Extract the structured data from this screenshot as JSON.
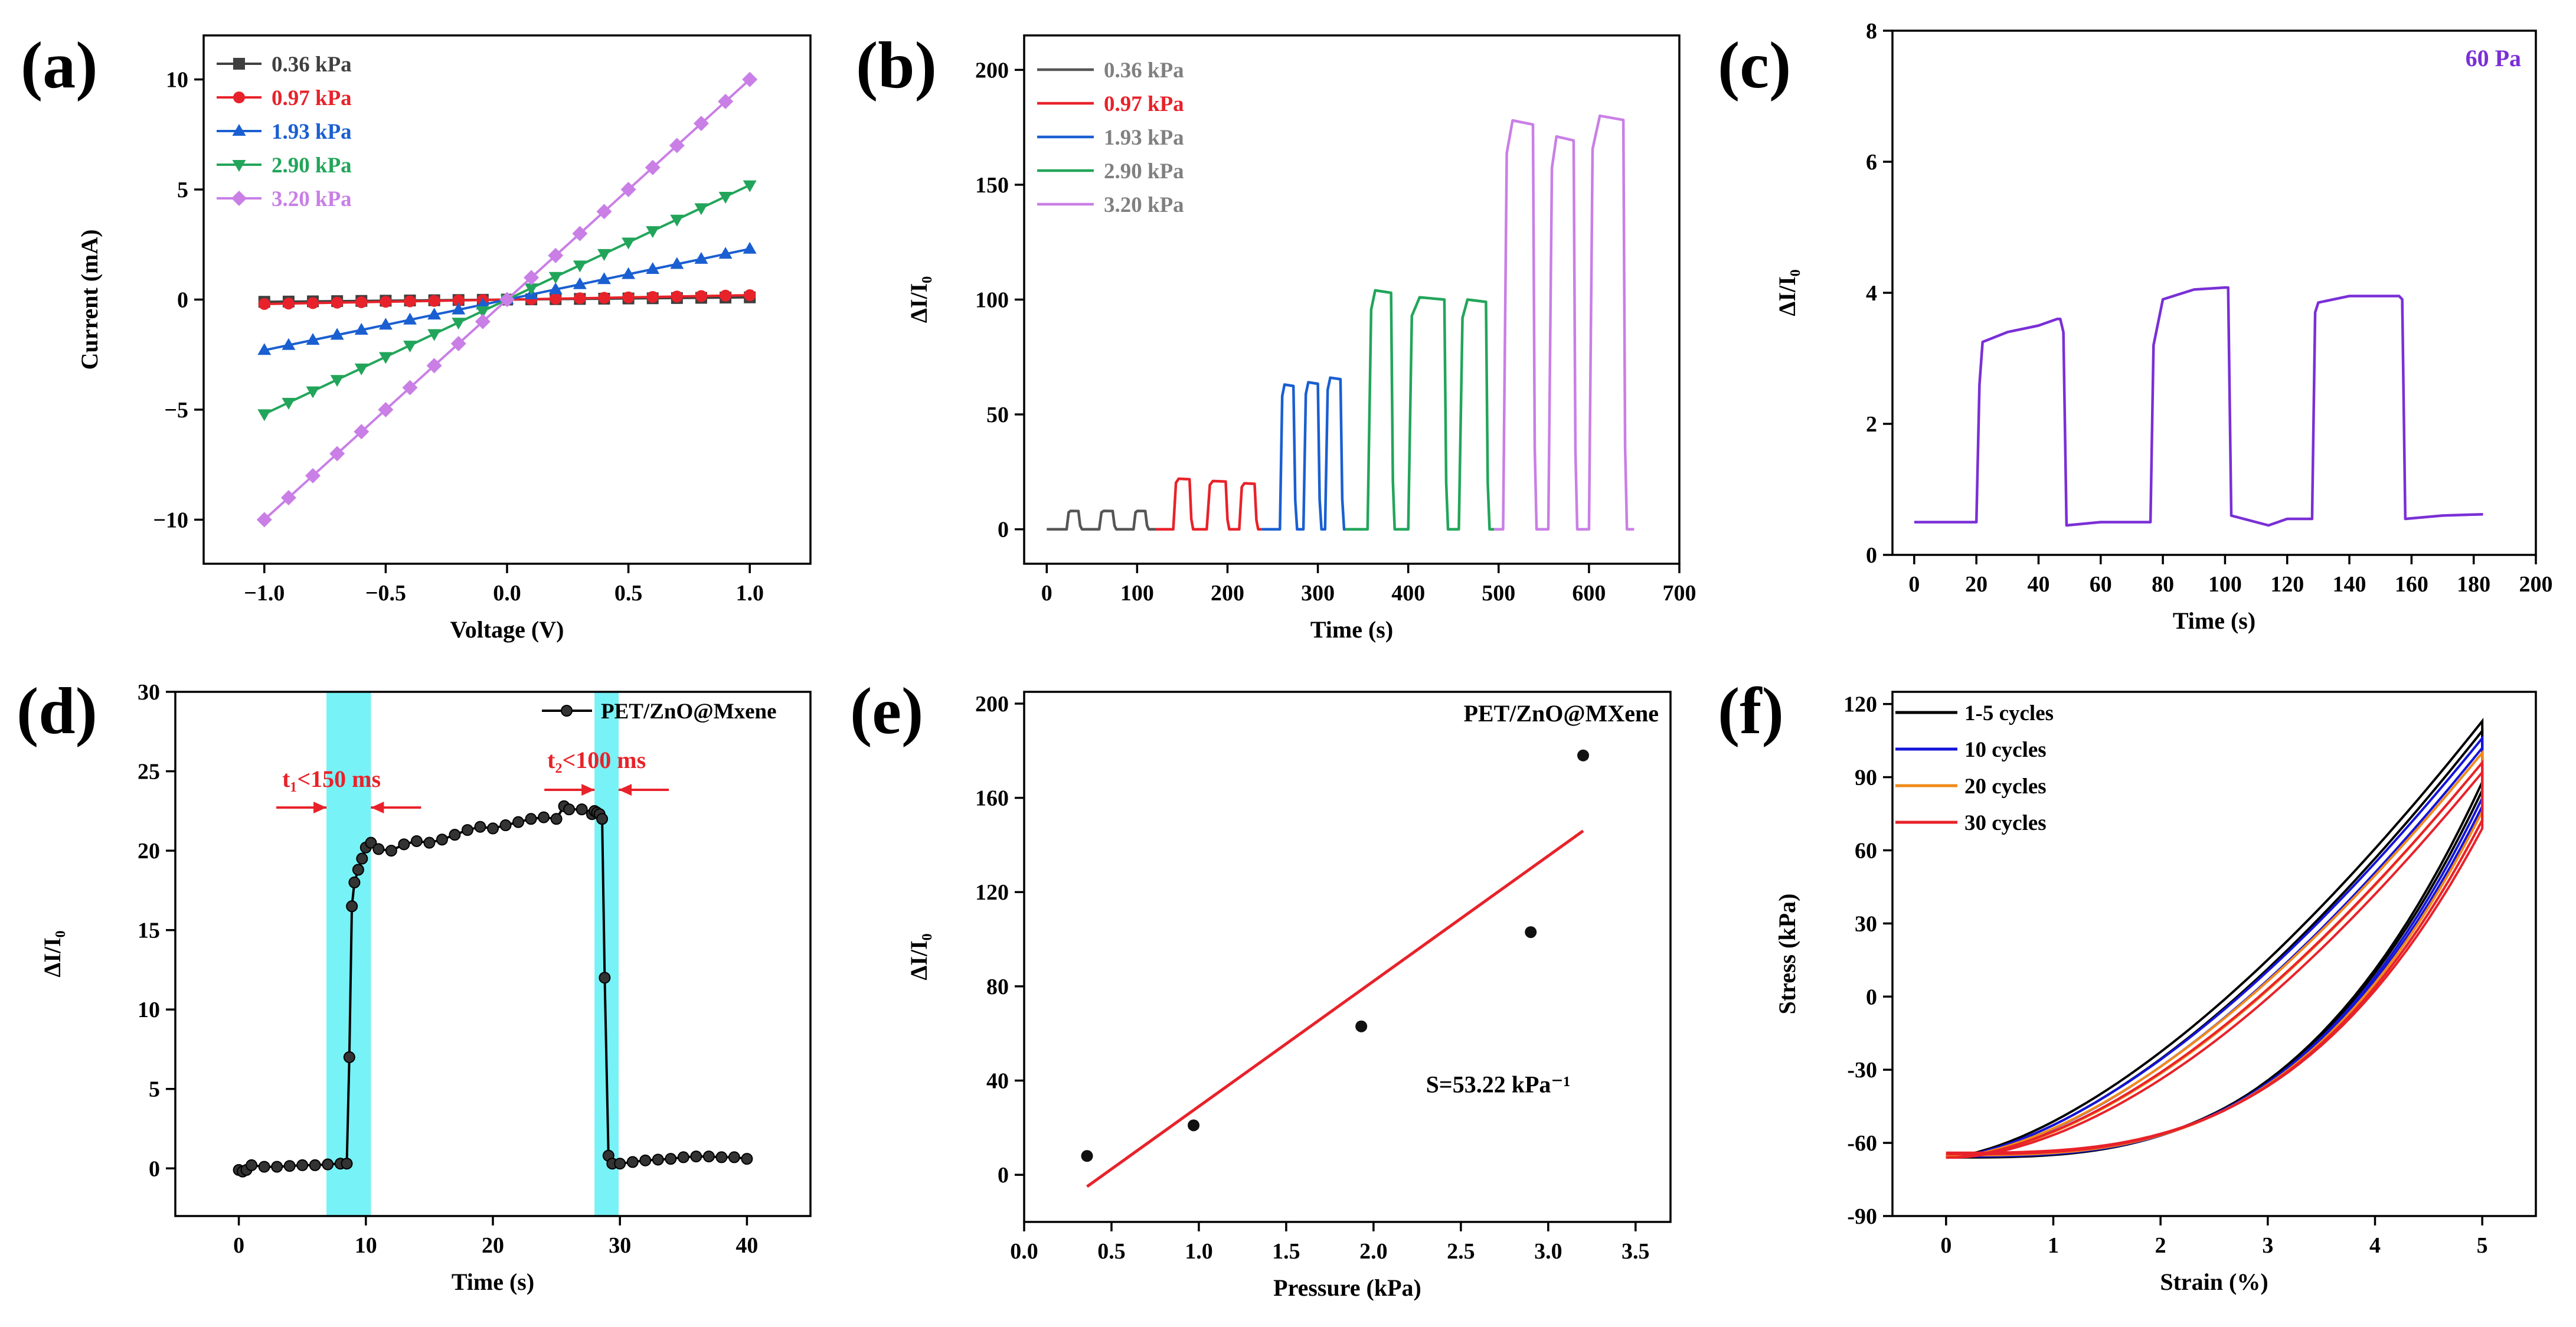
{
  "chart_data": [
    {
      "panel": "(a)",
      "type": "line",
      "xlabel": "Voltage (V)",
      "ylabel": "Current (mA)",
      "xlim": [
        -1.25,
        1.25
      ],
      "ylim": [
        -12,
        12
      ],
      "xticks": [
        -1.0,
        -0.5,
        0.0,
        0.5,
        1.0
      ],
      "xtick_labels": [
        "−1.0",
        "−0.5",
        "0.0",
        "0.5",
        "1.0"
      ],
      "yticks": [
        -10,
        -5,
        0,
        5,
        10
      ],
      "ytick_labels": [
        "−10",
        "−5",
        "0",
        "5",
        "10"
      ],
      "legend_position": "top-left",
      "series": [
        {
          "name": "0.36 kPa",
          "slope": 0.1,
          "color": "#404040",
          "marker": "square"
        },
        {
          "name": "0.97 kPa",
          "slope": 0.2,
          "color": "#e8222a",
          "marker": "circle"
        },
        {
          "name": "1.93 kPa",
          "slope": 2.3,
          "color": "#1a5fd1",
          "marker": "triangle-up"
        },
        {
          "name": "2.90 kPa",
          "slope": 5.2,
          "color": "#22a55a",
          "marker": "triangle-down"
        },
        {
          "name": "3.20 kPa",
          "slope": 10.0,
          "color": "#c97fe6",
          "marker": "diamond"
        }
      ]
    },
    {
      "panel": "(b)",
      "type": "line",
      "xlabel": "Time (s)",
      "ylabel": "ΔI/I₀",
      "xlim": [
        -25,
        700
      ],
      "ylim": [
        -15,
        215
      ],
      "xticks": [
        0,
        100,
        200,
        300,
        400,
        500,
        600,
        700
      ],
      "xtick_labels": [
        "0",
        "100",
        "200",
        "300",
        "400",
        "500",
        "600",
        "700"
      ],
      "yticks": [
        0,
        50,
        100,
        150,
        200
      ],
      "ytick_labels": [
        "0",
        "50",
        "100",
        "150",
        "200"
      ],
      "legend_position": "top-left",
      "series": [
        {
          "name": "0.36 kPa",
          "color": "#555555",
          "base": 0,
          "peaks": [
            8,
            8,
            8
          ],
          "pulses": [
            [
              22,
              37
            ],
            [
              58,
              75
            ],
            [
              96,
              111
            ]
          ],
          "range": [
            0,
            120
          ]
        },
        {
          "name": "0.97 kPa",
          "color": "#e8222a",
          "base": 0,
          "peaks": [
            22,
            21,
            20
          ],
          "pulses": [
            [
              140,
              160
            ],
            [
              177,
              200
            ],
            [
              213,
              232
            ]
          ],
          "range": [
            120,
            238
          ]
        },
        {
          "name": "1.93 kPa",
          "color": "#1a5fd1",
          "base": 0,
          "peaks": [
            63,
            64,
            66
          ],
          "pulses": [
            [
              258,
              275
            ],
            [
              284,
              302
            ],
            [
              308,
              327
            ]
          ],
          "range": [
            238,
            330
          ]
        },
        {
          "name": "2.90 kPa",
          "color": "#22a55a",
          "base": 0,
          "peaks": [
            104,
            101,
            100
          ],
          "pulses": [
            [
              355,
              383
            ],
            [
              400,
              442
            ],
            [
              456,
              488
            ]
          ],
          "range": [
            330,
            495
          ]
        },
        {
          "name": "3.20 kPa",
          "color": "#c97fe6",
          "base": 0,
          "peaks": [
            178,
            171,
            180
          ],
          "pulses": [
            [
              505,
              540
            ],
            [
              555,
              585
            ],
            [
              600,
              640
            ]
          ],
          "range": [
            495,
            650
          ]
        }
      ]
    },
    {
      "panel": "(c)",
      "type": "line",
      "xlabel": "Time (s)",
      "ylabel": "ΔI/I₀",
      "xlim": [
        -7,
        200
      ],
      "ylim": [
        0,
        8
      ],
      "xticks": [
        0,
        20,
        40,
        60,
        80,
        100,
        120,
        140,
        160,
        180,
        200
      ],
      "xtick_labels": [
        "0",
        "20",
        "40",
        "60",
        "80",
        "100",
        "120",
        "140",
        "160",
        "180",
        "200"
      ],
      "yticks": [
        0,
        2,
        4,
        6,
        8
      ],
      "ytick_labels": [
        "0",
        "2",
        "4",
        "6",
        "8"
      ],
      "annotation": "60 Pa",
      "color": "#7a2fd6",
      "x": [
        0,
        20,
        21,
        22,
        30,
        40,
        46,
        47,
        48,
        49,
        60,
        76,
        77,
        80,
        90,
        100,
        101,
        102,
        110,
        114,
        120,
        128,
        129,
        130,
        140,
        150,
        156,
        157,
        158,
        170,
        183
      ],
      "y": [
        0.5,
        0.5,
        2.6,
        3.25,
        3.4,
        3.5,
        3.6,
        3.6,
        3.4,
        0.45,
        0.5,
        0.5,
        3.2,
        3.9,
        4.05,
        4.08,
        4.08,
        0.6,
        0.5,
        0.45,
        0.55,
        0.55,
        3.7,
        3.85,
        3.95,
        3.95,
        3.95,
        3.9,
        0.55,
        0.6,
        0.62
      ]
    },
    {
      "panel": "(d)",
      "type": "line",
      "xlabel": "Time (s)",
      "ylabel": "ΔI/I₀",
      "xlim": [
        -5,
        45
      ],
      "ylim": [
        -3,
        30
      ],
      "xticks": [
        0,
        10,
        20,
        30,
        40
      ],
      "xtick_labels": [
        "0",
        "10",
        "20",
        "30",
        "40"
      ],
      "yticks": [
        0,
        5,
        10,
        15,
        20,
        25,
        30
      ],
      "ytick_labels": [
        "0",
        "5",
        "10",
        "15",
        "20",
        "25",
        "30"
      ],
      "legend": "PET/ZnO@Mxene",
      "legend_position": "top-right",
      "shaded_regions": [
        [
          6.9,
          10.4
        ],
        [
          28.0,
          29.9
        ]
      ],
      "annotations": [
        "t₁<150 ms",
        "t₂<100 ms"
      ],
      "x": [
        0,
        0.3,
        0.6,
        1,
        2,
        3,
        4,
        5,
        6,
        7,
        8,
        8.5,
        8.7,
        8.9,
        9.1,
        9.4,
        9.7,
        10,
        10.4,
        11,
        12,
        13,
        14,
        15,
        16,
        17,
        18,
        19,
        20,
        21,
        22,
        23,
        24,
        25,
        25.6,
        26,
        27,
        27.8,
        28,
        28.2,
        28.4,
        28.6,
        28.8,
        29.1,
        29.4,
        30,
        31,
        32,
        33,
        34,
        35,
        36,
        37,
        38,
        39,
        40
      ],
      "y": [
        -0.1,
        -0.2,
        -0.1,
        0.2,
        0.1,
        0.1,
        0.15,
        0.2,
        0.2,
        0.25,
        0.3,
        0.3,
        7,
        16.5,
        18,
        18.8,
        19.5,
        20.2,
        20.5,
        20.1,
        20,
        20.4,
        20.6,
        20.5,
        20.7,
        21,
        21.3,
        21.5,
        21.4,
        21.6,
        21.8,
        22,
        22.1,
        22,
        22.8,
        22.6,
        22.6,
        22.3,
        22.5,
        22.4,
        22.3,
        22,
        12,
        0.8,
        0.3,
        0.3,
        0.4,
        0.5,
        0.55,
        0.6,
        0.7,
        0.75,
        0.75,
        0.7,
        0.7,
        0.6
      ]
    },
    {
      "panel": "(e)",
      "type": "scatter",
      "xlabel": "Pressure (kPa)",
      "ylabel": "ΔI/I₀",
      "xlim": [
        0,
        3.7
      ],
      "ylim": [
        -20,
        205
      ],
      "xticks": [
        0,
        0.5,
        1.0,
        1.5,
        2.0,
        2.5,
        3.0,
        3.5
      ],
      "xtick_labels": [
        "0.0",
        "0.5",
        "1.0",
        "1.5",
        "2.0",
        "2.5",
        "3.0",
        "3.5"
      ],
      "yticks": [
        0,
        40,
        80,
        120,
        160,
        200
      ],
      "ytick_labels": [
        "0",
        "40",
        "80",
        "120",
        "160",
        "200"
      ],
      "x": [
        0.36,
        0.97,
        1.93,
        2.9,
        3.2
      ],
      "y": [
        8,
        21,
        63,
        103,
        178
      ],
      "fit_line": {
        "x": [
          0.36,
          3.2
        ],
        "y": [
          -5,
          146
        ],
        "color": "#e8222a"
      },
      "annotation": "S=53.22 kPa⁻¹",
      "legend": "PET/ZnO@MXene"
    },
    {
      "panel": "(f)",
      "type": "line",
      "xlabel": "Strain (%)",
      "ylabel": "Stress (kPa)",
      "xlim": [
        -0.5,
        5.5
      ],
      "ylim": [
        -90,
        125
      ],
      "xticks": [
        0,
        1,
        2,
        3,
        4,
        5
      ],
      "xtick_labels": [
        "0",
        "1",
        "2",
        "3",
        "4",
        "5"
      ],
      "yticks": [
        -90,
        -60,
        -30,
        0,
        30,
        60,
        90,
        120
      ],
      "ytick_labels": [
        "-90",
        "-60",
        "-30",
        "0",
        "30",
        "60",
        "90",
        "120"
      ],
      "legend_position": "top-left",
      "series": [
        {
          "name": "1-5 cycles",
          "color": "#000000",
          "max": 113
        },
        {
          "name": "10 cycles",
          "color": "#1515d8",
          "max": 106
        },
        {
          "name": "20 cycles",
          "color": "#f08a1c",
          "max": 100
        },
        {
          "name": "30 cycles",
          "color": "#e8222a",
          "max": 96
        }
      ]
    }
  ]
}
